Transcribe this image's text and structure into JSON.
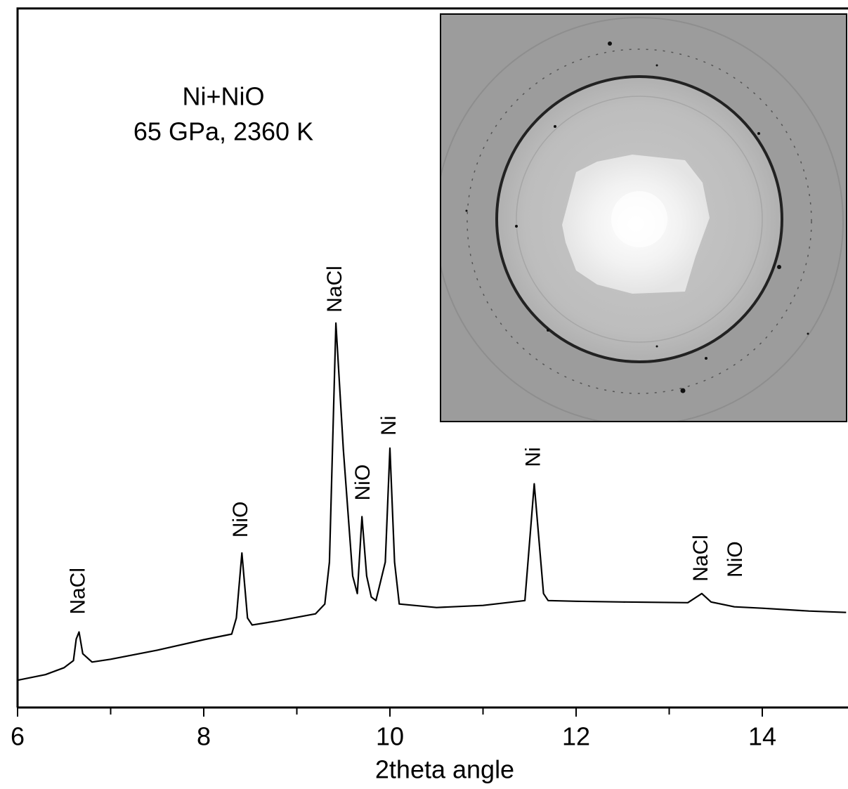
{
  "chart_data": {
    "type": "line",
    "title": "Ni+NiO",
    "subtitle": "65 GPa, 2360 K",
    "x_label": "2theta angle",
    "xlim": [
      6,
      14.9
    ],
    "xticks": [
      6,
      8,
      10,
      12,
      14
    ],
    "xminor": [
      7,
      9,
      11,
      13
    ],
    "ylim": [
      0,
      100
    ],
    "series": [
      {
        "color": "#000000",
        "x": [
          6.0,
          6.3,
          6.5,
          6.6,
          6.63,
          6.66,
          6.7,
          6.8,
          7.0,
          7.5,
          8.0,
          8.3,
          8.35,
          8.41,
          8.47,
          8.52,
          8.8,
          9.2,
          9.3,
          9.35,
          9.42,
          9.5,
          9.6,
          9.65,
          9.7,
          9.75,
          9.8,
          9.85,
          9.95,
          10.0,
          10.05,
          10.1,
          10.5,
          11.0,
          11.45,
          11.55,
          11.65,
          11.7,
          12.0,
          12.5,
          13.2,
          13.35,
          13.45,
          13.7,
          14.0,
          14.5,
          14.9
        ],
        "values": [
          3.9,
          4.7,
          5.7,
          6.7,
          9.8,
          10.8,
          7.7,
          6.5,
          6.9,
          8.2,
          9.7,
          10.5,
          12.8,
          22.1,
          12.8,
          11.8,
          12.4,
          13.4,
          14.8,
          20.8,
          55.0,
          36.9,
          18.8,
          16.3,
          27.3,
          18.8,
          15.8,
          15.3,
          20.8,
          37.1,
          20.8,
          14.8,
          14.3,
          14.6,
          15.3,
          32.0,
          16.3,
          15.3,
          15.2,
          15.1,
          15.0,
          16.3,
          15.1,
          14.4,
          14.2,
          13.8,
          13.6
        ]
      }
    ],
    "peak_labels": [
      {
        "text": "NaCl",
        "x": 6.66,
        "y": 13.3
      },
      {
        "text": "NiO",
        "x": 8.41,
        "y": 24.3
      },
      {
        "text": "NaCl",
        "x": 9.42,
        "y": 56.5
      },
      {
        "text": "NiO",
        "x": 9.72,
        "y": 29.6
      },
      {
        "text": "Ni",
        "x": 10.0,
        "y": 38.9
      },
      {
        "text": "Ni",
        "x": 11.55,
        "y": 34.4
      },
      {
        "text": "NaCl",
        "x": 13.35,
        "y": 18.0
      },
      {
        "text": "NiO",
        "x": 13.72,
        "y": 18.6
      }
    ]
  }
}
